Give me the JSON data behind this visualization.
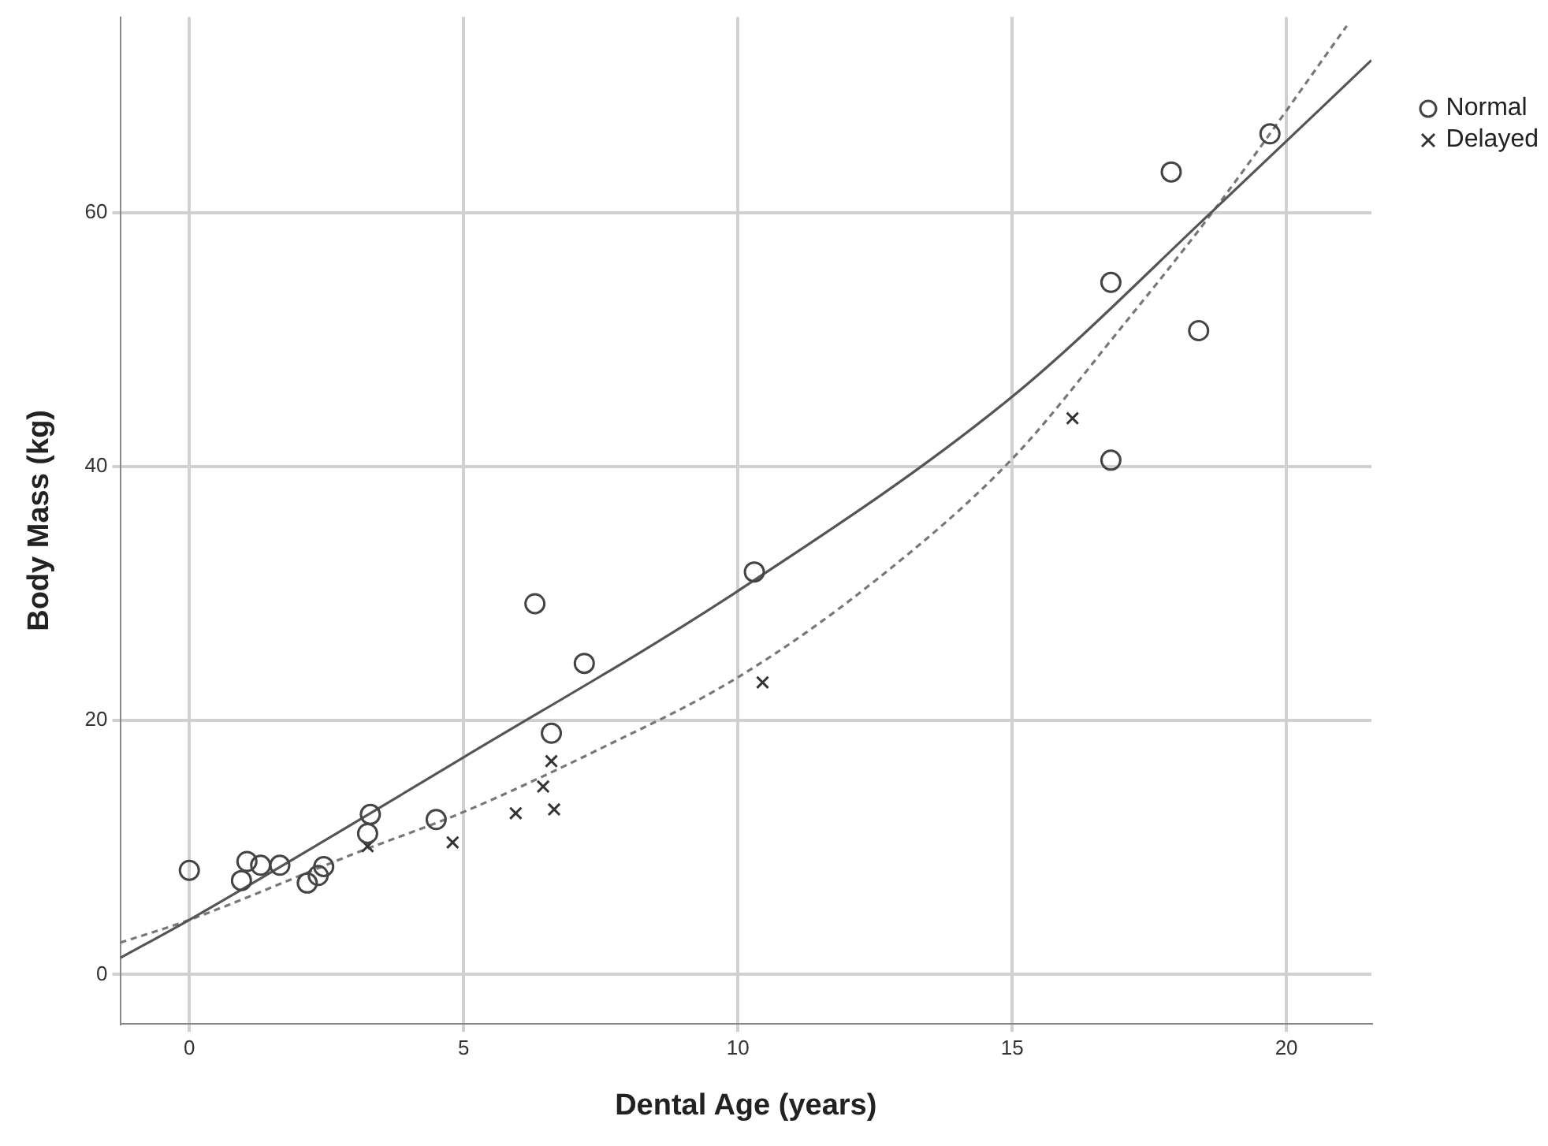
{
  "chart_data": {
    "type": "scatter",
    "xlabel": "Dental Age (years)",
    "ylabel": "Body Mass (kg)",
    "xlim": [
      -1.26,
      21.55
    ],
    "ylim": [
      -3.9,
      75.4
    ],
    "xticks": [
      0,
      5,
      10,
      15,
      20
    ],
    "yticks": [
      0,
      20,
      40,
      60
    ],
    "grid": true,
    "legend": "top right",
    "series": [
      {
        "name": "Normal",
        "marker": "circle",
        "color": "#444444",
        "x": [
          0.0,
          0.95,
          1.05,
          1.3,
          1.65,
          2.15,
          2.35,
          2.45,
          3.3,
          3.25,
          4.5,
          6.3,
          6.6,
          7.2,
          10.3,
          16.8,
          16.8,
          17.9,
          18.4,
          19.7
        ],
        "values": [
          8.2,
          7.4,
          8.9,
          8.6,
          8.6,
          7.2,
          7.8,
          8.5,
          12.6,
          11.1,
          12.2,
          29.2,
          19.0,
          24.5,
          31.7,
          54.5,
          40.5,
          63.2,
          50.7,
          66.2
        ]
      },
      {
        "name": "Delayed",
        "marker": "cross",
        "color": "#333333",
        "x": [
          3.25,
          4.8,
          5.95,
          6.45,
          6.6,
          6.65,
          10.45,
          16.1
        ],
        "values": [
          10.1,
          10.4,
          12.7,
          14.8,
          16.8,
          13.0,
          23.0,
          43.8
        ]
      },
      {
        "type": "line",
        "marker": "none",
        "line_style": "solid",
        "color": "#555555",
        "x": [
          -1.26,
          0,
          5,
          10,
          15,
          18.7,
          21.55
        ],
        "values": [
          1.3,
          4.3,
          17.1,
          30.2,
          45.5,
          60.3,
          72
        ]
      },
      {
        "type": "line",
        "marker": "none",
        "line_style": "dashed",
        "color": "#777777",
        "x": [
          -1.26,
          0,
          3,
          5,
          7.5,
          10,
          12.5,
          15,
          17,
          18.7,
          21.1
        ],
        "values": [
          2.5,
          4.3,
          9.5,
          12.8,
          17.8,
          23.4,
          31,
          40.6,
          51,
          60.3,
          74.7
        ]
      }
    ]
  }
}
